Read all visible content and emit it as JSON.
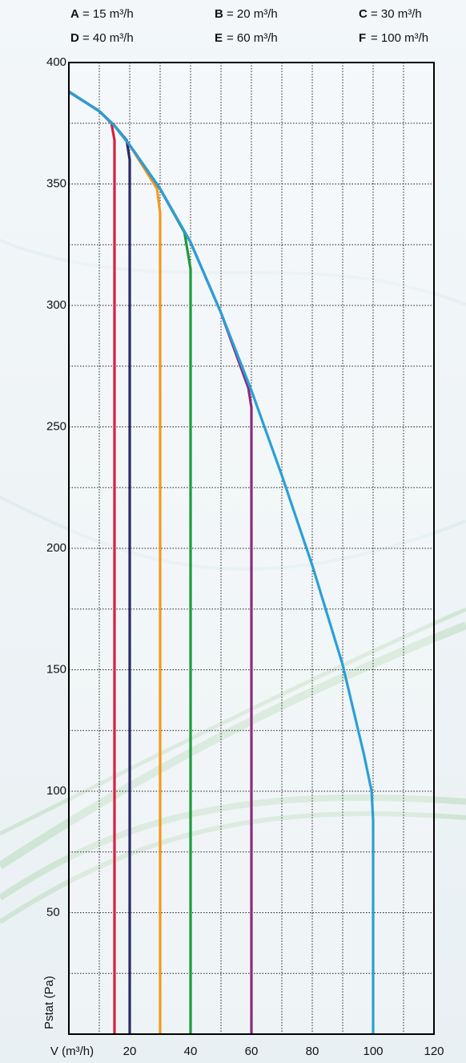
{
  "chart_data": {
    "type": "line",
    "xlabel": "V (m³/h)",
    "ylabel": "Pstat (Pa)",
    "xlim": [
      0,
      120
    ],
    "ylim": [
      0,
      400
    ],
    "xticks": [
      20,
      40,
      60,
      80,
      100,
      120
    ],
    "yticks": [
      50,
      100,
      150,
      200,
      250,
      300,
      350,
      400
    ],
    "xgrid": [
      10,
      20,
      30,
      40,
      50,
      60,
      70,
      80,
      90,
      100,
      110
    ],
    "ygrid": [
      25,
      50,
      75,
      100,
      125,
      150,
      175,
      200,
      225,
      250,
      275,
      300,
      325,
      350,
      375
    ],
    "grid": true,
    "series": [
      {
        "name": "A",
        "legend_text": "= 15 m³/h",
        "color": "#d8203f",
        "x": [
          0,
          10,
          14,
          15,
          15
        ],
        "values": [
          388,
          380,
          375,
          368,
          0
        ]
      },
      {
        "name": "B",
        "legend_text": "= 20 m³/h",
        "color": "#2a2a68",
        "x": [
          0,
          10,
          15,
          19,
          20,
          20
        ],
        "values": [
          388,
          380,
          374,
          368,
          360,
          0
        ]
      },
      {
        "name": "C",
        "legend_text": "= 30 m³/h",
        "color": "#f39a1c",
        "x": [
          0,
          10,
          15,
          20,
          29,
          30,
          30
        ],
        "values": [
          388,
          380,
          374,
          366,
          348,
          338,
          0
        ]
      },
      {
        "name": "D",
        "legend_text": "= 40 m³/h",
        "color": "#1d9a3c",
        "x": [
          0,
          10,
          15,
          20,
          30,
          38,
          40,
          40
        ],
        "values": [
          388,
          380,
          374,
          366,
          348,
          330,
          315,
          0
        ]
      },
      {
        "name": "E",
        "legend_text": "= 60 m³/h",
        "color": "#8c2a7c",
        "x": [
          0,
          10,
          15,
          20,
          30,
          40,
          50,
          59,
          60,
          60
        ],
        "values": [
          388,
          380,
          374,
          366,
          348,
          326,
          297,
          266,
          258,
          0
        ]
      },
      {
        "name": "F",
        "legend_text": "= 100 m³/h",
        "color": "#2b9fd6",
        "x": [
          0,
          10,
          15,
          20,
          30,
          40,
          50,
          60,
          70,
          80,
          90,
          97,
          99.5,
          100,
          100
        ],
        "values": [
          388,
          380,
          374,
          366,
          348,
          326,
          297,
          265,
          230,
          193,
          152,
          115,
          100,
          88,
          0
        ]
      }
    ]
  }
}
